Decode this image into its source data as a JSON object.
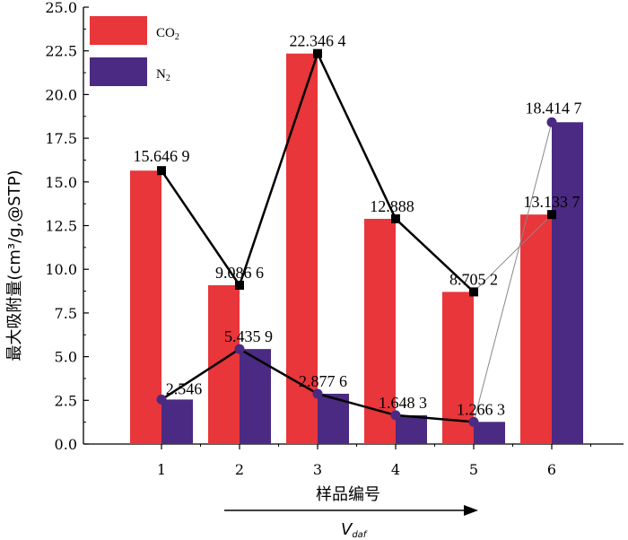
{
  "chart_data": {
    "type": "bar",
    "categories": [
      "1",
      "2",
      "3",
      "4",
      "5",
      "6"
    ],
    "series": [
      {
        "name": "CO2",
        "color": "#e8363a",
        "values": [
          15.6469,
          9.0866,
          22.3464,
          12.888,
          8.7052,
          13.1337
        ],
        "labels": [
          "15.646 9",
          "9.086 6",
          "22.346 4",
          "12.888",
          "8.705 2",
          "13.133 7"
        ]
      },
      {
        "name": "N2",
        "color": "#4a2a82",
        "values": [
          2.546,
          5.4359,
          2.8776,
          1.6483,
          1.2663,
          18.4147
        ],
        "labels": [
          "2.546",
          "5.435 9",
          "2.877 6",
          "1.648 3",
          "1.266 3",
          "18.414 7"
        ]
      }
    ],
    "ylabel": "最大吸附量(cm³/g,@STP)",
    "xlabel": "样品编号",
    "arrow_label": "V",
    "arrow_label_sub": "daf",
    "ylim": [
      0,
      25
    ],
    "yticks": [
      "0.0",
      "2.5",
      "5.0",
      "7.5",
      "10.0",
      "12.5",
      "15.0",
      "17.5",
      "20.0",
      "22.5",
      "25.0"
    ],
    "legend": {
      "position": "top-left",
      "entries": [
        {
          "main": "CO",
          "sub": "2",
          "color": "#e8363a"
        },
        {
          "main": "N",
          "sub": "2",
          "color": "#4a2a82"
        }
      ]
    },
    "grid": false,
    "line_color": "#000000",
    "line6_color": "#888888"
  }
}
